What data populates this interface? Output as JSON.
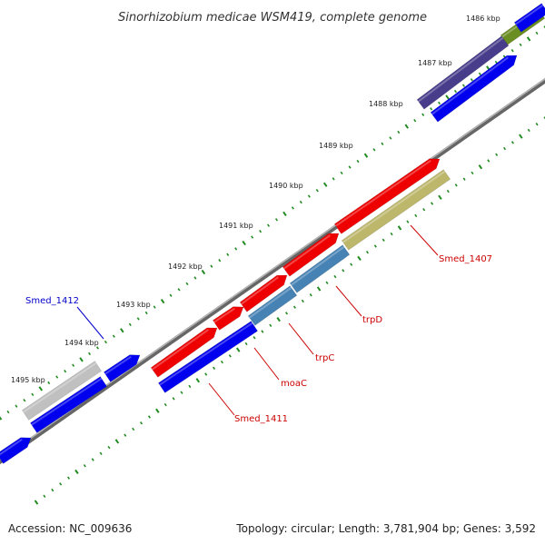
{
  "title": "Sinorhizobium medicae WSM419, complete genome",
  "footer": {
    "accession": "Accession: NC_009636",
    "summary": "Topology: circular; Length: 3,781,904 bp; Genes: 3,592"
  },
  "scale": {
    "unit": "kbp",
    "labels": [
      "1486 kbp",
      "1487 kbp",
      "1488 kbp",
      "1489 kbp",
      "1490 kbp",
      "1491 kbp",
      "1492 kbp",
      "1493 kbp",
      "1494 kbp",
      "1495 kbp"
    ]
  },
  "gene_labels": [
    {
      "name": "Smed_1412",
      "color": "#0000cc"
    },
    {
      "name": "Smed_1407",
      "color": "#cc0000"
    },
    {
      "name": "trpD",
      "color": "#cc0000"
    },
    {
      "name": "trpC",
      "color": "#cc0000"
    },
    {
      "name": "moaC",
      "color": "#cc0000"
    },
    {
      "name": "Smed_1411",
      "color": "#cc0000"
    }
  ],
  "colors": {
    "cds": "#0000ee",
    "rna_feature": "#ee0000",
    "cog_trp": "#4682b4",
    "cog_khaki": "#bdb76b",
    "cog_slate": "#483d8b",
    "cog_olive": "#6b8e23",
    "cog_gray": "#c0c0c0",
    "backbone": "#888888",
    "tick": "#228b22"
  }
}
